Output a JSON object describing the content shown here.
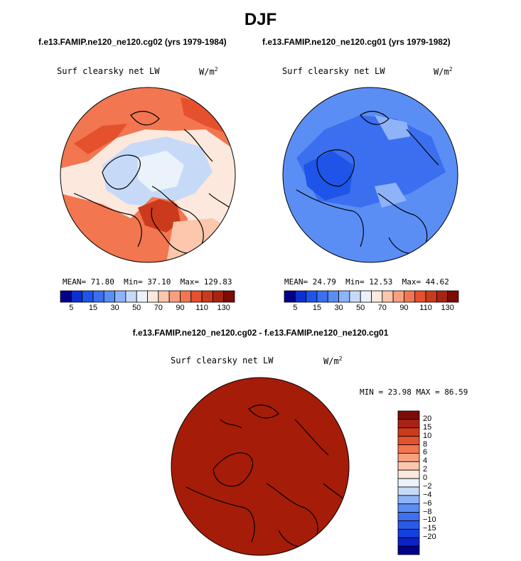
{
  "page": {
    "season": "DJF",
    "case1_label": "f.e13.FAMIP.ne120_ne120.cg02 (yrs 1979-1984)",
    "case2_label": "f.e13.FAMIP.ne120_ne120.cg01 (yrs 1979-1982)",
    "diff_label": "f.e13.FAMIP.ne120_ne120.cg02 - f.e13.FAMIP.ne120_ne120.cg01"
  },
  "colors": {
    "abs_scale": [
      "#00008b",
      "#0b2fd0",
      "#1e55e8",
      "#3b6ff0",
      "#5b8ef5",
      "#8fb3f8",
      "#c6daf8",
      "#eaf2fb",
      "#fde8dd",
      "#fcc7ad",
      "#f8a07e",
      "#f27650",
      "#e5502d",
      "#cc3a1c",
      "#a92313",
      "#7d0b06"
    ],
    "diff_scale": [
      "#00008b",
      "#0a22c8",
      "#1440e0",
      "#2a5ae8",
      "#3e6ff0",
      "#5b8ef5",
      "#8fb3f8",
      "#c6daf8",
      "#eaf2fb",
      "#fde8dd",
      "#fcc7ad",
      "#f8a07e",
      "#f27650",
      "#e5502d",
      "#cc3a1c",
      "#a92313",
      "#7d0b06"
    ],
    "diff_fill": "#a51c08"
  },
  "chart_data": [
    {
      "type": "heatmap",
      "projection": "north-polar-stereographic",
      "title": "Surf clearsky net LW",
      "units_base": "W/m",
      "units_exp": "2",
      "stats": {
        "mean_label": "MEAN=",
        "mean": "71.80",
        "min_label": "Min=",
        "min": "37.10",
        "max_label": "Max=",
        "max": "129.83"
      },
      "levels": [
        5,
        10,
        15,
        20,
        30,
        40,
        50,
        60,
        70,
        80,
        90,
        100,
        110,
        120,
        130
      ],
      "tick_labels": [
        "5",
        "15",
        "30",
        "50",
        "70",
        "90",
        "110",
        "130"
      ]
    },
    {
      "type": "heatmap",
      "projection": "north-polar-stereographic",
      "title": "Surf clearsky net LW",
      "units_base": "W/m",
      "units_exp": "2",
      "stats": {
        "mean_label": "MEAN=",
        "mean": "24.79",
        "min_label": "Min=",
        "min": "12.53",
        "max_label": "Max=",
        "max": "44.62"
      },
      "levels": [
        5,
        10,
        15,
        20,
        30,
        40,
        50,
        60,
        70,
        80,
        90,
        100,
        110,
        120,
        130
      ],
      "tick_labels": [
        "5",
        "15",
        "30",
        "50",
        "70",
        "90",
        "110",
        "130"
      ]
    },
    {
      "type": "heatmap",
      "projection": "north-polar-stereographic",
      "title": "Surf clearsky net LW",
      "units_base": "W/m",
      "units_exp": "2",
      "stats": {
        "min_label": "MIN =",
        "min": "23.98",
        "max_label": "MAX =",
        "max": "86.59"
      },
      "levels": [
        -20,
        -15,
        -10,
        -8,
        -6,
        -4,
        -2,
        0,
        2,
        4,
        6,
        8,
        10,
        15,
        20
      ],
      "tick_labels": [
        "20",
        "15",
        "10",
        "8",
        "6",
        "4",
        "2",
        "0",
        "−2",
        "−4",
        "−6",
        "−8",
        "−10",
        "−15",
        "−20"
      ]
    }
  ]
}
